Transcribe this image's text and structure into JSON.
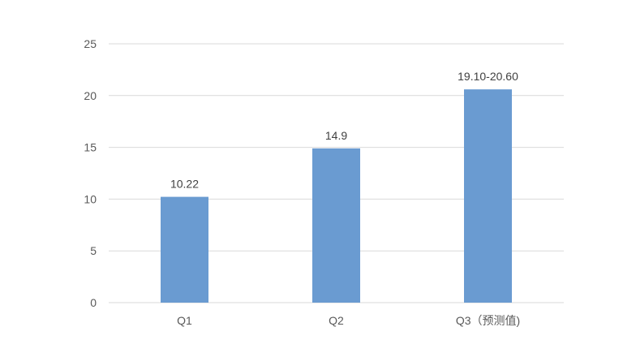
{
  "chart_data": {
    "type": "bar",
    "categories": [
      "Q1",
      "Q2",
      "Q3（预测值)"
    ],
    "values": [
      10.22,
      14.9,
      20.6
    ],
    "data_labels": [
      "10.22",
      "14.9",
      "19.10-20.60"
    ],
    "ylim": [
      0,
      25
    ],
    "yticks": [
      0,
      5,
      10,
      15,
      20,
      25
    ],
    "grid": true,
    "bar_color": "#6a9bd1",
    "title": "",
    "xlabel": "",
    "ylabel": ""
  }
}
